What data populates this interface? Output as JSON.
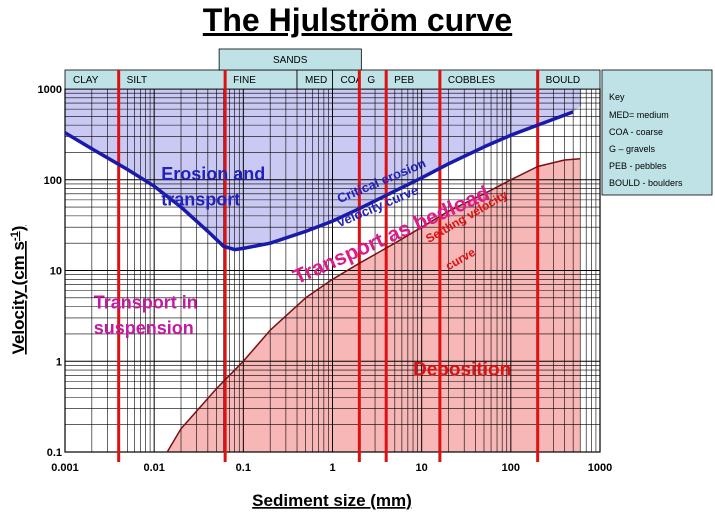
{
  "chart_data": {
    "type": "line",
    "title": "The Hjulström curve",
    "xlabel": "Sediment size (mm)",
    "ylabel": "Velocity (cm s",
    "ylabel_sup": "-1",
    "x_scale": "log",
    "y_scale": "log",
    "xlim": [
      0.001,
      1000
    ],
    "ylim": [
      0.1,
      1000
    ],
    "x_ticks": [
      {
        "value": 0.001,
        "label": "0.001"
      },
      {
        "value": 0.01,
        "label": "0.01"
      },
      {
        "value": 0.1,
        "label": "0.1"
      },
      {
        "value": 1,
        "label": "1"
      },
      {
        "value": 10,
        "label": "10"
      },
      {
        "value": 100,
        "label": "100"
      },
      {
        "value": 1000,
        "label": "1000"
      }
    ],
    "y_ticks": [
      {
        "value": 0.1,
        "label": "0.1"
      },
      {
        "value": 1,
        "label": "1"
      },
      {
        "value": 10,
        "label": "10"
      },
      {
        "value": 100,
        "label": "100"
      },
      {
        "value": 1000,
        "label": "1000"
      }
    ],
    "grid": true,
    "size_classes": [
      {
        "label": "CLAY",
        "from": 0.001,
        "to": 0.004
      },
      {
        "label": "SILT",
        "from": 0.004,
        "to": 0.0625
      },
      {
        "label": "FINE",
        "from": 0.0625,
        "to": 0.4
      },
      {
        "label": "MED",
        "from": 0.4,
        "to": 1.0
      },
      {
        "label": "COA",
        "from": 1.0,
        "to": 2.0
      },
      {
        "label": "G",
        "from": 2.0,
        "to": 4.0
      },
      {
        "label": "PEB",
        "from": 4.0,
        "to": 16.0
      },
      {
        "label": "COBBLES",
        "from": 16.0,
        "to": 200.0
      },
      {
        "label": "BOULD",
        "from": 200.0,
        "to": 1000.0
      }
    ],
    "size_group": {
      "label": "SANDS",
      "from": 0.0625,
      "to": 2.0
    },
    "boundaries": [
      0.004,
      0.0625,
      2.0,
      4.0,
      16.0,
      200.0
    ],
    "series": [
      {
        "name": "Critical erosion velocity curve",
        "x": [
          0.001,
          0.002,
          0.005,
          0.01,
          0.02,
          0.04,
          0.06,
          0.08,
          0.1,
          0.2,
          0.5,
          1,
          2,
          5,
          10,
          20,
          50,
          100,
          200,
          500
        ],
        "y": [
          330,
          220,
          130,
          85,
          50,
          27,
          18.5,
          17,
          17.5,
          20,
          27,
          35,
          48,
          75,
          105,
          150,
          230,
          310,
          400,
          560
        ]
      },
      {
        "name": "Settling velocity curve",
        "x": [
          0.014,
          0.02,
          0.05,
          0.1,
          0.2,
          0.5,
          1,
          2,
          5,
          10,
          20,
          50,
          100,
          200,
          400,
          600
        ],
        "y": [
          0.1,
          0.18,
          0.5,
          1,
          2.2,
          5,
          8,
          12,
          20,
          30,
          45,
          70,
          100,
          140,
          165,
          170
        ]
      }
    ],
    "annotations": [
      {
        "text": "Erosion and",
        "x": 0.012,
        "y": 100
      },
      {
        "text": "transport",
        "x": 0.012,
        "y": 52
      },
      {
        "text": "Critical erosion",
        "x": 1.2,
        "y": 55
      },
      {
        "text": "velocity curve",
        "x": 1.2,
        "y": 30
      },
      {
        "text": "Transport as bedload",
        "x": 0.4,
        "y": 7
      },
      {
        "text": "Settling velocity",
        "x": 12,
        "y": 20
      },
      {
        "text": "curve",
        "x": 20,
        "y": 10
      },
      {
        "text": "Transport in",
        "x": 0.0021,
        "y": 3.8
      },
      {
        "text": "suspension",
        "x": 0.0021,
        "y": 2.0
      },
      {
        "text": "Deposition",
        "x": 8,
        "y": 0.7
      }
    ],
    "key": {
      "title": "Key",
      "items": [
        "MED= medium",
        "COA - coarse",
        "G – gravels",
        "PEB - pebbles",
        "BOULD - boulders"
      ]
    }
  }
}
